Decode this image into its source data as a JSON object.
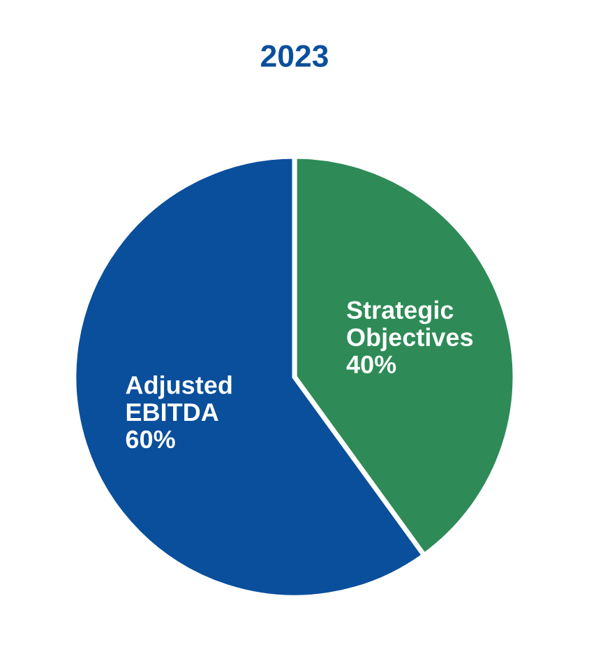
{
  "chart_data": {
    "type": "pie",
    "title": "2023",
    "categories": [
      "Strategic\nObjectives",
      "Adjusted\nEBITDA"
    ],
    "values": [
      40,
      60
    ],
    "value_labels": [
      "40%",
      "60%"
    ],
    "colors": [
      "#2e8b57",
      "#0a4f9c"
    ]
  }
}
